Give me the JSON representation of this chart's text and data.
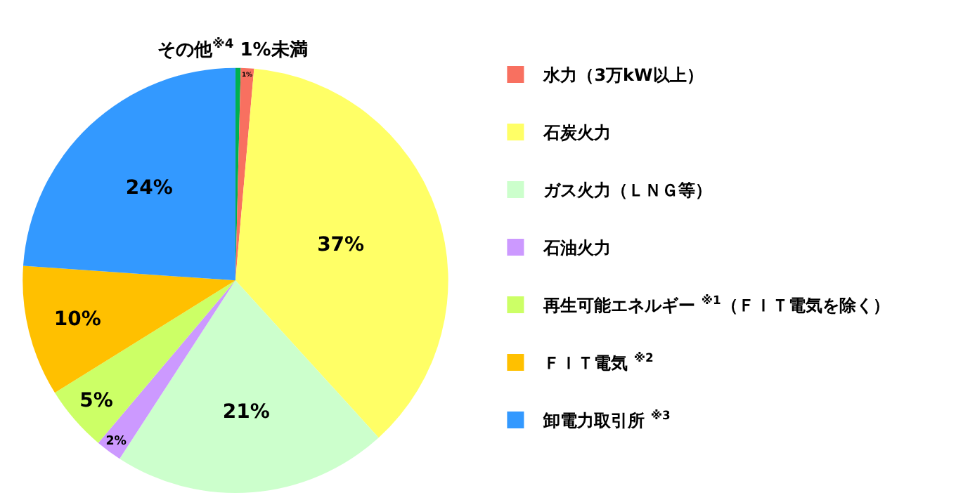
{
  "chart_data": {
    "type": "pie",
    "categories": [
      null,
      "水力（3万kW以上）",
      "石炭火力",
      "ガス火力（ＬＮＧ等）",
      "石油火力",
      "再生可能エネルギー $^{※1}$（ＦＩＴ電気を除く）",
      "ＦＩＴ電気 $^{※2}$",
      "卸電力取引所 $^{※3}$"
    ],
    "values": [
      0.4,
      1,
      37,
      21,
      2,
      5,
      10,
      24
    ],
    "value_labels": [
      null,
      "1%",
      "37%",
      "21%",
      "2%",
      "5%",
      "10%",
      "24%"
    ],
    "colors": [
      "#00b050",
      "#f87060",
      "#ffff66",
      "#ccffcc",
      "#cc99ff",
      "#ccff66",
      "#ffc000",
      "#3399ff"
    ],
    "annotations": [
      "その他$^{※4}$ 1%未満"
    ],
    "legend": "right"
  }
}
